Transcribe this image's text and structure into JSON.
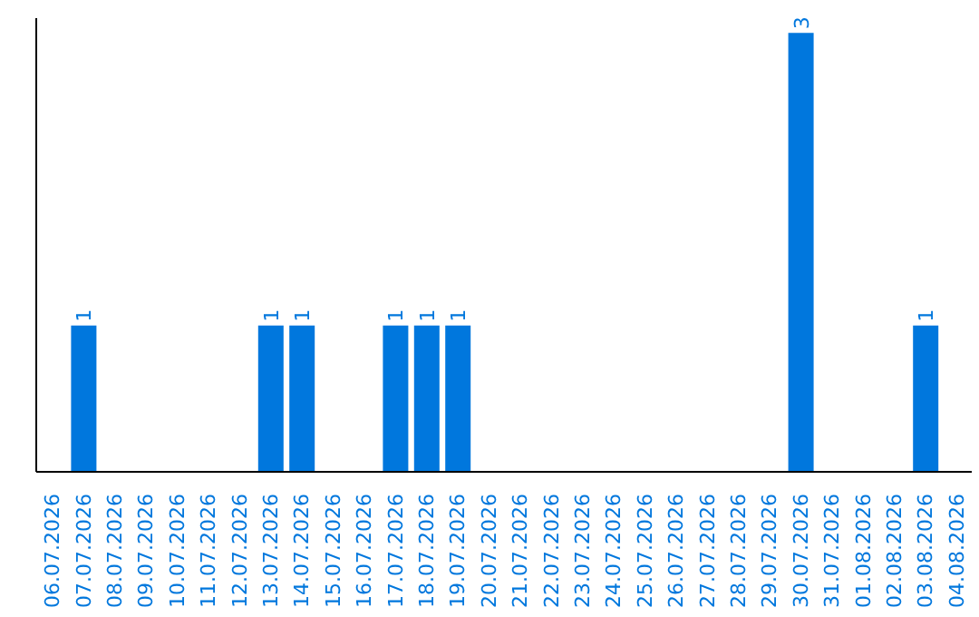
{
  "chart_data": {
    "type": "bar",
    "categories": [
      "06.07.2026",
      "07.07.2026",
      "08.07.2026",
      "09.07.2026",
      "10.07.2026",
      "11.07.2026",
      "12.07.2026",
      "13.07.2026",
      "14.07.2026",
      "15.07.2026",
      "16.07.2026",
      "17.07.2026",
      "18.07.2026",
      "19.07.2026",
      "20.07.2026",
      "21.07.2026",
      "22.07.2026",
      "23.07.2026",
      "24.07.2026",
      "25.07.2026",
      "26.07.2026",
      "27.07.2026",
      "28.07.2026",
      "29.07.2026",
      "30.07.2026",
      "31.07.2026",
      "01.08.2026",
      "02.08.2026",
      "03.08.2026",
      "04.08.2026"
    ],
    "values": [
      0,
      1,
      0,
      0,
      0,
      0,
      0,
      1,
      1,
      0,
      0,
      1,
      1,
      1,
      0,
      0,
      0,
      0,
      0,
      0,
      0,
      0,
      0,
      0,
      3,
      0,
      0,
      0,
      1,
      0
    ],
    "color": "#0077dd",
    "ylim": [
      0,
      3.1
    ],
    "tick_labels": "x",
    "value_labels": [
      null,
      "1",
      null,
      null,
      null,
      null,
      null,
      "1",
      "1",
      null,
      null,
      "1",
      "1",
      "1",
      null,
      null,
      null,
      null,
      null,
      null,
      null,
      null,
      null,
      null,
      "3",
      null,
      null,
      null,
      "1",
      null
    ],
    "grid": false,
    "legend": false
  }
}
